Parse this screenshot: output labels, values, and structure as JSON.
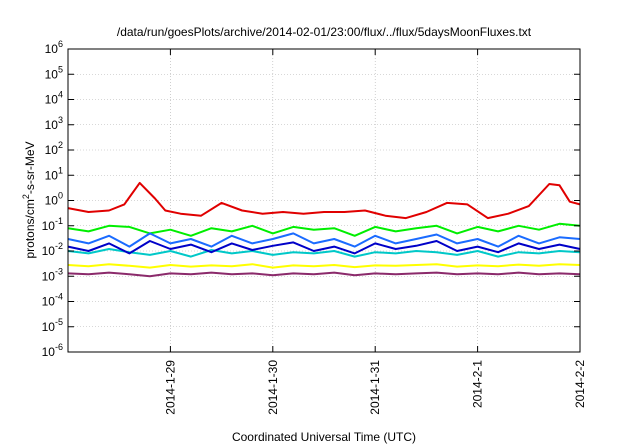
{
  "chart_data": {
    "type": "line",
    "title": "/data/run/goesPlots/archive/2014-02-01/23:00/flux/../flux/5daysMoonFluxes.txt",
    "xlabel": "Coordinated Universal Time (UTC)",
    "ylabel": {
      "base": "protons/cm",
      "sup": "2",
      "rest": "-s-sr-MeV"
    },
    "y_scale": "log",
    "ylim": [
      1e-06,
      1000000
    ],
    "y_ticks": [
      {
        "exp": "-6",
        "value": 1e-06
      },
      {
        "exp": "-5",
        "value": 1e-05
      },
      {
        "exp": "-4",
        "value": 0.0001
      },
      {
        "exp": "-3",
        "value": 0.001
      },
      {
        "exp": "-2",
        "value": 0.01
      },
      {
        "exp": "-1",
        "value": 0.1
      },
      {
        "exp": "0",
        "value": 1
      },
      {
        "exp": "1",
        "value": 10
      },
      {
        "exp": "2",
        "value": 100
      },
      {
        "exp": "3",
        "value": 1000
      },
      {
        "exp": "4",
        "value": 10000
      },
      {
        "exp": "5",
        "value": 100000
      },
      {
        "exp": "6",
        "value": 1000000
      }
    ],
    "x_ticks": [
      {
        "label": "2014-1-29",
        "day": 29
      },
      {
        "label": "2014-1-30",
        "day": 30
      },
      {
        "label": "2014-1-31",
        "day": 31
      },
      {
        "label": "2014-2-1",
        "day": 32
      },
      {
        "label": "2014-2-2",
        "day": 33
      }
    ],
    "xlim_day": [
      28.0,
      33.0
    ],
    "grid": true,
    "series": [
      {
        "color": "#e00000",
        "x": [
          28.0,
          28.2,
          28.4,
          28.55,
          28.7,
          28.85,
          28.95,
          29.1,
          29.3,
          29.5,
          29.7,
          29.9,
          30.1,
          30.3,
          30.5,
          30.7,
          30.9,
          31.1,
          31.3,
          31.5,
          31.7,
          31.9,
          32.1,
          32.3,
          32.5,
          32.7,
          32.8,
          32.9,
          33.0
        ],
        "y": [
          0.5,
          0.35,
          0.4,
          0.7,
          5.0,
          1.2,
          0.4,
          0.3,
          0.25,
          0.8,
          0.4,
          0.3,
          0.35,
          0.3,
          0.35,
          0.35,
          0.4,
          0.25,
          0.2,
          0.35,
          0.8,
          0.7,
          0.2,
          0.3,
          0.6,
          4.5,
          4.0,
          0.9,
          0.7
        ]
      },
      {
        "color": "#00ee00",
        "x": [
          28.0,
          28.2,
          28.4,
          28.6,
          28.8,
          29.0,
          29.2,
          29.4,
          29.6,
          29.8,
          30.0,
          30.2,
          30.4,
          30.6,
          30.8,
          31.0,
          31.2,
          31.4,
          31.6,
          31.8,
          32.0,
          32.2,
          32.4,
          32.6,
          32.8,
          33.0
        ],
        "y": [
          0.08,
          0.06,
          0.1,
          0.09,
          0.05,
          0.07,
          0.04,
          0.08,
          0.06,
          0.1,
          0.05,
          0.09,
          0.07,
          0.08,
          0.04,
          0.09,
          0.06,
          0.08,
          0.1,
          0.05,
          0.09,
          0.06,
          0.1,
          0.07,
          0.12,
          0.1
        ]
      },
      {
        "color": "#00c8c8",
        "x": [
          28.0,
          28.2,
          28.4,
          28.6,
          28.8,
          29.0,
          29.2,
          29.4,
          29.6,
          29.8,
          30.0,
          30.2,
          30.4,
          30.6,
          30.8,
          31.0,
          31.2,
          31.4,
          31.6,
          31.8,
          32.0,
          32.2,
          32.4,
          32.6,
          32.8,
          33.0
        ],
        "y": [
          0.01,
          0.008,
          0.012,
          0.009,
          0.007,
          0.01,
          0.006,
          0.011,
          0.008,
          0.01,
          0.007,
          0.009,
          0.008,
          0.01,
          0.006,
          0.009,
          0.008,
          0.01,
          0.009,
          0.007,
          0.01,
          0.006,
          0.009,
          0.008,
          0.01,
          0.009
        ]
      },
      {
        "color": "#1a6bff",
        "x": [
          28.0,
          28.2,
          28.4,
          28.6,
          28.8,
          29.0,
          29.2,
          29.4,
          29.6,
          29.8,
          30.0,
          30.2,
          30.4,
          30.6,
          30.8,
          31.0,
          31.2,
          31.4,
          31.6,
          31.8,
          32.0,
          32.2,
          32.4,
          32.6,
          32.8,
          33.0
        ],
        "y": [
          0.03,
          0.02,
          0.04,
          0.015,
          0.05,
          0.02,
          0.03,
          0.015,
          0.04,
          0.02,
          0.03,
          0.05,
          0.02,
          0.03,
          0.015,
          0.04,
          0.02,
          0.03,
          0.045,
          0.02,
          0.03,
          0.015,
          0.04,
          0.02,
          0.035,
          0.03
        ]
      },
      {
        "color": "#0000c8",
        "x": [
          28.0,
          28.2,
          28.4,
          28.6,
          28.8,
          29.0,
          29.2,
          29.4,
          29.6,
          29.8,
          30.0,
          30.2,
          30.4,
          30.6,
          30.8,
          31.0,
          31.2,
          31.4,
          31.6,
          31.8,
          32.0,
          32.2,
          32.4,
          32.6,
          32.8,
          33.0
        ],
        "y": [
          0.015,
          0.01,
          0.02,
          0.008,
          0.025,
          0.012,
          0.018,
          0.009,
          0.02,
          0.011,
          0.016,
          0.022,
          0.01,
          0.015,
          0.008,
          0.02,
          0.012,
          0.016,
          0.025,
          0.01,
          0.015,
          0.009,
          0.02,
          0.012,
          0.018,
          0.012
        ]
      },
      {
        "color": "#ffff00",
        "x": [
          28.0,
          28.2,
          28.4,
          28.6,
          28.8,
          29.0,
          29.2,
          29.4,
          29.6,
          29.8,
          30.0,
          30.2,
          30.4,
          30.6,
          30.8,
          31.0,
          31.2,
          31.4,
          31.6,
          31.8,
          32.0,
          32.2,
          32.4,
          32.6,
          32.8,
          33.0
        ],
        "y": [
          0.0028,
          0.0025,
          0.003,
          0.0026,
          0.0022,
          0.0028,
          0.0024,
          0.0027,
          0.0025,
          0.003,
          0.0022,
          0.0027,
          0.0025,
          0.0028,
          0.0023,
          0.0027,
          0.0026,
          0.0028,
          0.003,
          0.0024,
          0.0027,
          0.0025,
          0.0029,
          0.0026,
          0.003,
          0.0028
        ]
      },
      {
        "color": "#8b2a6b",
        "x": [
          28.0,
          28.2,
          28.4,
          28.6,
          28.8,
          29.0,
          29.2,
          29.4,
          29.6,
          29.8,
          30.0,
          30.2,
          30.4,
          30.6,
          30.8,
          31.0,
          31.2,
          31.4,
          31.6,
          31.8,
          32.0,
          32.2,
          32.4,
          32.6,
          32.8,
          33.0
        ],
        "y": [
          0.0013,
          0.0012,
          0.0014,
          0.0012,
          0.001,
          0.0013,
          0.0012,
          0.0014,
          0.0012,
          0.0013,
          0.0011,
          0.0013,
          0.0012,
          0.0014,
          0.0011,
          0.0013,
          0.0012,
          0.0013,
          0.0014,
          0.0012,
          0.0013,
          0.0012,
          0.0014,
          0.0012,
          0.0013,
          0.0012
        ]
      }
    ]
  }
}
